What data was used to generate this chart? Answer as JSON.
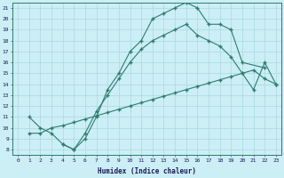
{
  "xlabel": "Humidex (Indice chaleur)",
  "bg_color": "#cceef5",
  "line_color": "#2d7d6e",
  "grid_color": "#aad8e0",
  "xlim": [
    -0.5,
    23.5
  ],
  "ylim": [
    7.5,
    21.5
  ],
  "yticks": [
    8,
    9,
    10,
    11,
    12,
    13,
    14,
    15,
    16,
    17,
    18,
    19,
    20,
    21
  ],
  "xticks": [
    0,
    1,
    2,
    3,
    4,
    5,
    6,
    7,
    8,
    9,
    10,
    11,
    12,
    13,
    14,
    15,
    16,
    17,
    18,
    19,
    20,
    21,
    22,
    23
  ],
  "curve1_x": [
    1,
    2,
    3,
    4,
    5,
    6,
    7,
    8,
    9,
    10,
    11,
    12,
    13,
    14,
    15,
    16,
    17,
    18,
    19,
    20,
    22
  ],
  "curve1_y": [
    11,
    10,
    9.5,
    8.5,
    8.0,
    9.0,
    11.0,
    13.5,
    15.0,
    17.0,
    18.0,
    20.0,
    20.5,
    21.0,
    21.5,
    21.0,
    19.5,
    19.5,
    19.0,
    16.0,
    15.5
  ],
  "curve2_x": [
    1,
    2,
    3,
    4,
    5,
    6,
    7,
    8,
    9,
    10,
    11,
    12,
    13,
    14,
    15,
    16,
    17,
    18,
    19,
    20,
    21,
    22,
    23
  ],
  "curve2_y": [
    9.5,
    9.5,
    10.0,
    10.2,
    10.5,
    10.8,
    11.1,
    11.4,
    11.7,
    12.0,
    12.3,
    12.6,
    12.9,
    13.2,
    13.5,
    13.8,
    14.1,
    14.4,
    14.7,
    15.0,
    15.3,
    14.5,
    14.0
  ],
  "curve3_x": [
    4,
    5,
    6,
    7,
    8,
    9,
    10,
    11,
    12,
    13,
    14,
    15,
    16,
    17,
    18,
    19,
    20,
    21,
    22,
    23
  ],
  "curve3_y": [
    8.5,
    8.0,
    9.5,
    11.5,
    13.0,
    14.5,
    16.0,
    17.2,
    18.0,
    18.5,
    19.0,
    19.5,
    18.5,
    18.0,
    17.5,
    16.5,
    15.0,
    13.5,
    16.0,
    14.0
  ]
}
